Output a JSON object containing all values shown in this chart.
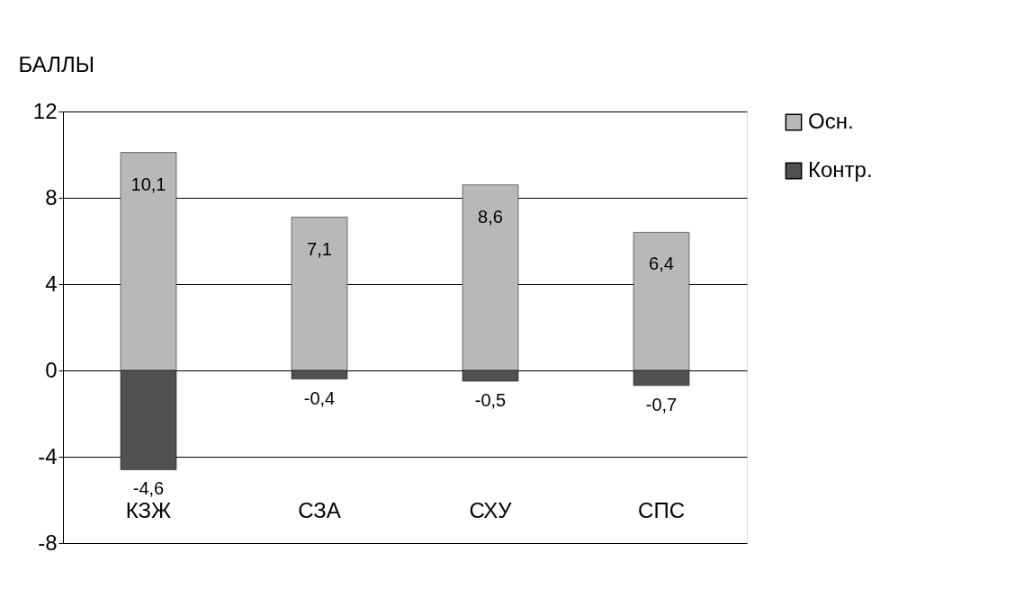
{
  "chart_data": {
    "type": "bar",
    "stacked": true,
    "ylabel": "БАЛЛЫ",
    "categories": [
      "КЗЖ",
      "СЗА",
      "СХУ",
      "СПС"
    ],
    "series": [
      {
        "name": "Осн.",
        "color": "#b8b8b8",
        "values": [
          10.1,
          7.1,
          8.6,
          6.4
        ],
        "value_labels": [
          "10,1",
          "7,1",
          "8,6",
          "6,4"
        ]
      },
      {
        "name": "Контр.",
        "color": "#505050",
        "values": [
          -4.6,
          -0.4,
          -0.5,
          -0.7
        ],
        "value_labels": [
          "-4,6",
          "-0,4",
          "-0,5",
          "-0,7"
        ]
      }
    ],
    "ylim": [
      -8,
      12
    ],
    "yticks": [
      -8,
      -4,
      0,
      4,
      8,
      12
    ],
    "grid": "y",
    "legend": "right"
  }
}
